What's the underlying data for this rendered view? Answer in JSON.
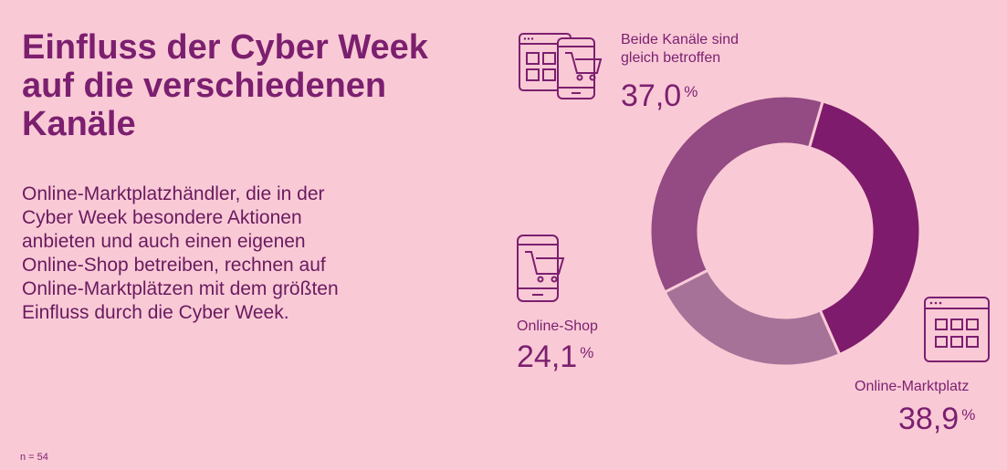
{
  "title_lines": [
    "Einfluss der Cyber Week",
    "auf die verschiedenen",
    "Kanäle"
  ],
  "description_lines": [
    "Online-Marktplatzhändler, die in der",
    "Cyber Week besondere Aktionen",
    "anbieten und auch einen eigenen",
    "Online-Shop betreiben, rechnen auf",
    "Online-Marktplätzen mit dem größten",
    "Einfluss durch die Cyber Week."
  ],
  "footnote": "n = 54",
  "colors": {
    "background": "#f9cad6",
    "text": "#7c1f6f",
    "beide": "#944a82",
    "marktplatz": "#7e1b6c",
    "shop": "#a77298"
  },
  "chart_data": {
    "type": "pie",
    "variant": "donut",
    "slices": [
      {
        "label_lines": [
          "Beide Kanäle sind",
          "gleich betroffen"
        ],
        "value": 37.0,
        "display": "37,0",
        "unit": "%",
        "color": "#944a82",
        "icon": "browser-and-phone-cart-icon"
      },
      {
        "label_lines": [
          "Online-Marktplatz"
        ],
        "value": 38.9,
        "display": "38,9",
        "unit": "%",
        "color": "#7e1b6c",
        "icon": "browser-grid-icon"
      },
      {
        "label_lines": [
          "Online-Shop"
        ],
        "value": 24.1,
        "display": "24,1",
        "unit": "%",
        "color": "#a77298",
        "icon": "phone-cart-icon"
      }
    ]
  }
}
